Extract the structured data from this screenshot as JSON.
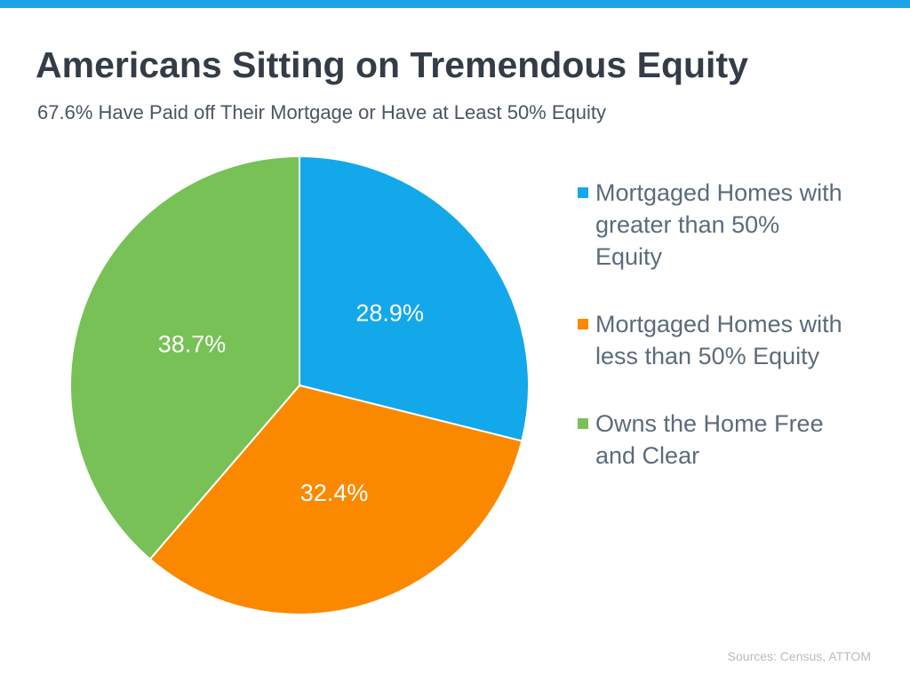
{
  "chart_data": {
    "type": "pie",
    "title": "Americans Sitting on Tremendous Equity",
    "subtitle": "67.6% Have Paid off Their Mortgage or Have at Least 50% Equity",
    "categories": [
      "Mortgaged Homes with greater than 50% Equity",
      "Mortgaged Homes with less than 50% Equity",
      "Owns the Home Free and Clear"
    ],
    "values": [
      28.9,
      32.4,
      38.7
    ],
    "value_labels": [
      "28.9%",
      "32.4%",
      "38.7%"
    ],
    "colors": [
      "#13a8ea",
      "#fb8900",
      "#77c157"
    ],
    "legend": "right",
    "source": "Sources: Census, ATTOM"
  }
}
